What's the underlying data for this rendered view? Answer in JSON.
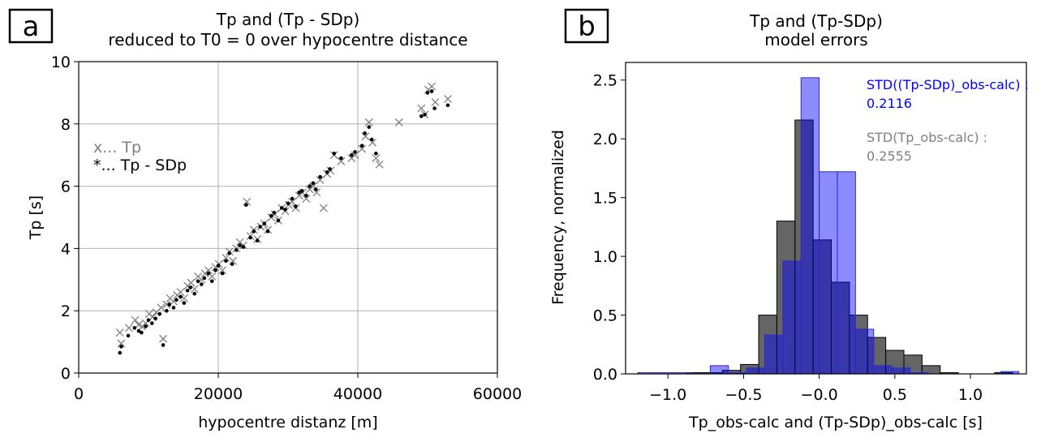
{
  "chart_data": [
    {
      "panel_letter": "a",
      "type": "scatter",
      "title": "Tp and (Tp - SDp)",
      "subtitle": "reduced to T0 = 0 over hypocentre distance",
      "xlabel": "hypocentre distanz [m]",
      "ylabel": "Tp [s]",
      "xlim": [
        0,
        60000
      ],
      "ylim": [
        0,
        10
      ],
      "xticks": [
        0,
        20000,
        40000,
        60000
      ],
      "xtick_labels": [
        "0",
        "20000",
        "40000",
        "60000"
      ],
      "yticks": [
        0,
        2,
        4,
        6,
        8,
        10
      ],
      "ytick_labels": [
        "0",
        "2",
        "4",
        "6",
        "8",
        "10"
      ],
      "grid": true,
      "legend": "center-left",
      "legend_entries": [
        "x... Tp",
        "*... Tp - SDp"
      ],
      "colors": {
        "Tp": "#808080",
        "Tp_SDp": "#000000"
      },
      "series": [
        {
          "name": "Tp",
          "marker": "x",
          "points": [
            [
              5900,
              1.3
            ],
            [
              6100,
              0.95
            ],
            [
              7200,
              1.45
            ],
            [
              8100,
              1.7
            ],
            [
              8600,
              1.55
            ],
            [
              9100,
              1.5
            ],
            [
              9600,
              1.6
            ],
            [
              10100,
              1.9
            ],
            [
              10600,
              1.8
            ],
            [
              11100,
              1.95
            ],
            [
              11800,
              2.1
            ],
            [
              12100,
              1.1
            ],
            [
              12600,
              2.2
            ],
            [
              13100,
              2.4
            ],
            [
              13600,
              2.3
            ],
            [
              14100,
              2.5
            ],
            [
              14600,
              2.6
            ],
            [
              15100,
              2.4
            ],
            [
              15600,
              2.8
            ],
            [
              16100,
              2.9
            ],
            [
              16600,
              2.7
            ],
            [
              17100,
              3.1
            ],
            [
              17600,
              3.0
            ],
            [
              18100,
              3.2
            ],
            [
              18600,
              3.3
            ],
            [
              19100,
              3.1
            ],
            [
              19600,
              3.4
            ],
            [
              20100,
              3.5
            ],
            [
              20600,
              3.3
            ],
            [
              21100,
              3.7
            ],
            [
              21600,
              3.9
            ],
            [
              22100,
              3.6
            ],
            [
              22600,
              4.0
            ],
            [
              23100,
              4.2
            ],
            [
              23600,
              4.1
            ],
            [
              24100,
              5.5
            ],
            [
              24600,
              4.4
            ],
            [
              25100,
              4.6
            ],
            [
              25600,
              4.3
            ],
            [
              26100,
              4.7
            ],
            [
              26600,
              4.8
            ],
            [
              27100,
              4.6
            ],
            [
              27600,
              5.0
            ],
            [
              28100,
              5.1
            ],
            [
              28600,
              4.9
            ],
            [
              29100,
              5.3
            ],
            [
              29600,
              5.2
            ],
            [
              30100,
              5.4
            ],
            [
              30600,
              5.5
            ],
            [
              31100,
              5.3
            ],
            [
              31600,
              5.7
            ],
            [
              32100,
              5.8
            ],
            [
              32600,
              5.6
            ],
            [
              33100,
              5.9
            ],
            [
              33600,
              6.0
            ],
            [
              34100,
              5.8
            ],
            [
              34600,
              6.2
            ],
            [
              35100,
              5.3
            ],
            [
              35600,
              6.4
            ],
            [
              36100,
              6.5
            ],
            [
              36600,
              7.0
            ],
            [
              37600,
              6.8
            ],
            [
              39100,
              6.9
            ],
            [
              39600,
              7.0
            ],
            [
              40600,
              7.2
            ],
            [
              41100,
              7.6
            ],
            [
              41600,
              8.05
            ],
            [
              42100,
              7.4
            ],
            [
              42600,
              6.9
            ],
            [
              43100,
              6.7
            ],
            [
              45900,
              8.05
            ],
            [
              49100,
              8.5
            ],
            [
              49600,
              8.3
            ],
            [
              50100,
              9.1
            ],
            [
              50600,
              9.2
            ],
            [
              51100,
              8.7
            ],
            [
              52900,
              8.8
            ]
          ]
        },
        {
          "name": "Tp - SDp",
          "marker": "*",
          "points": [
            [
              5900,
              0.65
            ],
            [
              6100,
              0.85
            ],
            [
              7100,
              1.2
            ],
            [
              8000,
              1.45
            ],
            [
              8600,
              1.35
            ],
            [
              9000,
              1.3
            ],
            [
              9600,
              1.5
            ],
            [
              10000,
              1.7
            ],
            [
              10500,
              1.6
            ],
            [
              11000,
              1.75
            ],
            [
              11600,
              1.9
            ],
            [
              12100,
              0.9
            ],
            [
              12600,
              2.0
            ],
            [
              13000,
              2.2
            ],
            [
              13600,
              2.1
            ],
            [
              14000,
              2.35
            ],
            [
              14600,
              2.45
            ],
            [
              15100,
              2.25
            ],
            [
              15600,
              2.65
            ],
            [
              16000,
              2.75
            ],
            [
              16600,
              2.55
            ],
            [
              17100,
              2.95
            ],
            [
              17600,
              2.85
            ],
            [
              18000,
              3.05
            ],
            [
              18600,
              3.2
            ],
            [
              19100,
              2.95
            ],
            [
              19600,
              3.3
            ],
            [
              20000,
              3.45
            ],
            [
              20600,
              3.2
            ],
            [
              21100,
              3.6
            ],
            [
              21600,
              3.85
            ],
            [
              22000,
              3.5
            ],
            [
              22600,
              3.95
            ],
            [
              23100,
              4.1
            ],
            [
              23600,
              4.05
            ],
            [
              24000,
              5.4
            ],
            [
              24600,
              4.35
            ],
            [
              25100,
              4.55
            ],
            [
              25600,
              4.25
            ],
            [
              26000,
              4.7
            ],
            [
              26600,
              4.8
            ],
            [
              27100,
              4.55
            ],
            [
              27600,
              5.05
            ],
            [
              28000,
              5.15
            ],
            [
              28600,
              4.9
            ],
            [
              29100,
              5.3
            ],
            [
              29600,
              5.25
            ],
            [
              30000,
              5.45
            ],
            [
              30600,
              5.6
            ],
            [
              31100,
              5.35
            ],
            [
              31600,
              5.8
            ],
            [
              32000,
              5.85
            ],
            [
              32600,
              5.7
            ],
            [
              33100,
              6.0
            ],
            [
              33600,
              6.1
            ],
            [
              34000,
              5.9
            ],
            [
              34600,
              6.3
            ],
            [
              35600,
              6.45
            ],
            [
              36000,
              6.55
            ],
            [
              36600,
              7.05
            ],
            [
              37600,
              6.9
            ],
            [
              39100,
              7.0
            ],
            [
              39600,
              7.1
            ],
            [
              40600,
              7.3
            ],
            [
              41000,
              7.7
            ],
            [
              41600,
              7.9
            ],
            [
              42000,
              7.5
            ],
            [
              42600,
              7.05
            ],
            [
              49100,
              8.25
            ],
            [
              49600,
              8.3
            ],
            [
              50000,
              9.0
            ],
            [
              50600,
              9.05
            ],
            [
              51000,
              8.5
            ],
            [
              52900,
              8.6
            ]
          ]
        }
      ]
    },
    {
      "panel_letter": "b",
      "type": "bar",
      "title": "Tp and (Tp-SDp)",
      "subtitle": "model errors",
      "xlabel": "Tp_obs-calc and (Tp-SDp)_obs-calc [s]",
      "ylabel": "Frequency, normalized",
      "xlim": [
        -1.28,
        1.37
      ],
      "ylim": [
        0,
        2.65
      ],
      "xticks": [
        -1.0,
        -0.5,
        0.0,
        0.5,
        1.0
      ],
      "xtick_labels": [
        "−1.0",
        "−0.5",
        "−0.0",
        "0.5",
        "1.0"
      ],
      "yticks": [
        0.0,
        0.5,
        1.0,
        1.5,
        2.0,
        2.5
      ],
      "ytick_labels": [
        "0.0",
        "0.5",
        "1.0",
        "1.5",
        "2.0",
        "2.5"
      ],
      "grid": false,
      "legend": "top-right",
      "colors": {
        "Tp_obs_calc": "#505050",
        "TpSDp_obs_calc": "#8080ff",
        "Tp_SDp_text": "#0000ff",
        "Tp_text": "#808080"
      },
      "annotations": [
        {
          "name": "STD((Tp-SDp)_obs-calc) :",
          "value": "0.2116",
          "color": "#0000ff"
        },
        {
          "name": "STD(Tp_obs-calc) :",
          "value": "0.2555",
          "color": "#808080"
        }
      ],
      "series": [
        {
          "name": "Tp_obs-calc",
          "bin_width": 0.12,
          "bins": [
            [
              -0.88,
              0.01
            ],
            [
              -0.76,
              0.01
            ],
            [
              -0.64,
              0.03
            ],
            [
              -0.52,
              0.08
            ],
            [
              -0.4,
              0.5
            ],
            [
              -0.28,
              1.3
            ],
            [
              -0.16,
              2.16
            ],
            [
              -0.04,
              1.14
            ],
            [
              0.08,
              0.78
            ],
            [
              0.2,
              0.5
            ],
            [
              0.32,
              0.31
            ],
            [
              0.44,
              0.2
            ],
            [
              0.56,
              0.16
            ],
            [
              0.68,
              0.07
            ],
            [
              0.8,
              0.01
            ],
            [
              1.16,
              0.01
            ]
          ]
        },
        {
          "name": "(Tp-SDp)_obs-calc",
          "bin_width": 0.12,
          "bins": [
            [
              -1.2,
              0.01
            ],
            [
              -1.08,
              0.01
            ],
            [
              -0.96,
              0.01
            ],
            [
              -0.72,
              0.07
            ],
            [
              -0.6,
              0.01
            ],
            [
              -0.48,
              0.05
            ],
            [
              -0.36,
              0.33
            ],
            [
              -0.24,
              0.96
            ],
            [
              -0.12,
              2.52
            ],
            [
              0.0,
              1.72
            ],
            [
              0.12,
              1.72
            ],
            [
              0.24,
              0.38
            ],
            [
              0.36,
              0.07
            ],
            [
              0.48,
              0.05
            ],
            [
              0.6,
              0.01
            ],
            [
              1.2,
              0.02
            ]
          ]
        }
      ]
    }
  ]
}
